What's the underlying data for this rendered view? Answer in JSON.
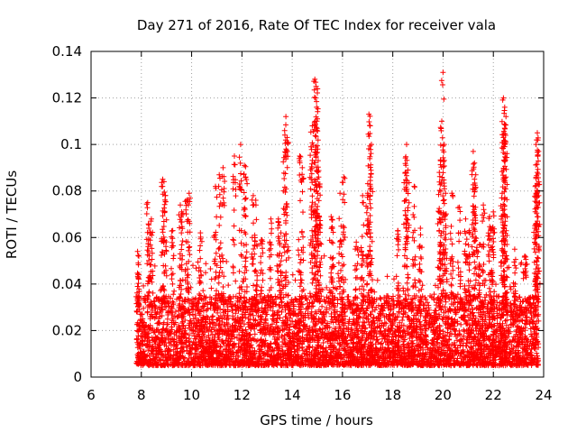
{
  "chart_data": {
    "type": "scatter",
    "title": "Day 271 of 2016, Rate Of TEC Index for receiver vala",
    "xlabel": "GPS time / hours",
    "ylabel": "ROTI / TECUs",
    "xlim": [
      6,
      24
    ],
    "ylim": [
      0,
      0.14
    ],
    "xticks": [
      6,
      8,
      10,
      12,
      14,
      16,
      18,
      20,
      22,
      24
    ],
    "yticks": [
      0,
      0.02,
      0.04,
      0.06,
      0.08,
      0.1,
      0.12,
      0.14
    ],
    "xtick_labels": [
      "6",
      "8",
      "10",
      "12",
      "14",
      "16",
      "18",
      "20",
      "22",
      "24"
    ],
    "ytick_labels": [
      "0",
      "0.02",
      "0.04",
      "0.06",
      "0.08",
      "0.1",
      "0.12",
      "0.14"
    ],
    "grid": true,
    "marker": "+",
    "color": "#ff0000",
    "data_range_hours": [
      7.8,
      23.8
    ],
    "series": [
      {
        "name": "ROTI",
        "points": [
          [
            7.85,
            0.054
          ],
          [
            7.9,
            0.052
          ],
          [
            8.25,
            0.075
          ],
          [
            8.3,
            0.064
          ],
          [
            8.4,
            0.068
          ],
          [
            8.85,
            0.085
          ],
          [
            8.9,
            0.084
          ],
          [
            8.95,
            0.078
          ],
          [
            9.55,
            0.074
          ],
          [
            9.6,
            0.071
          ],
          [
            9.8,
            0.076
          ],
          [
            9.9,
            0.079
          ],
          [
            10.95,
            0.082
          ],
          [
            11.1,
            0.087
          ],
          [
            11.25,
            0.09
          ],
          [
            11.7,
            0.095
          ],
          [
            11.95,
            0.1
          ],
          [
            12.1,
            0.091
          ],
          [
            12.15,
            0.086
          ],
          [
            12.45,
            0.078
          ],
          [
            12.55,
            0.076
          ],
          [
            13.15,
            0.068
          ],
          [
            13.45,
            0.068
          ],
          [
            13.75,
            0.112
          ],
          [
            13.7,
            0.106
          ],
          [
            13.8,
            0.103
          ],
          [
            14.3,
            0.095
          ],
          [
            14.4,
            0.09
          ],
          [
            14.75,
            0.099
          ],
          [
            14.8,
            0.108
          ],
          [
            14.9,
            0.128
          ],
          [
            14.95,
            0.125
          ],
          [
            14.92,
            0.12
          ],
          [
            14.97,
            0.116
          ],
          [
            15.0,
            0.111
          ],
          [
            15.05,
            0.086
          ],
          [
            15.1,
            0.083
          ],
          [
            15.55,
            0.069
          ],
          [
            15.6,
            0.064
          ],
          [
            15.9,
            0.079
          ],
          [
            16.05,
            0.086
          ],
          [
            16.8,
            0.078
          ],
          [
            17.05,
            0.113
          ],
          [
            17.1,
            0.108
          ],
          [
            17.15,
            0.1
          ],
          [
            17.0,
            0.079
          ],
          [
            18.55,
            0.1
          ],
          [
            18.6,
            0.089
          ],
          [
            18.5,
            0.088
          ],
          [
            18.85,
            0.082
          ],
          [
            19.85,
            0.088
          ],
          [
            20.0,
            0.131
          ],
          [
            19.95,
            0.11
          ],
          [
            20.05,
            0.1
          ],
          [
            19.9,
            0.093
          ],
          [
            20.1,
            0.079
          ],
          [
            20.35,
            0.079
          ],
          [
            20.65,
            0.073
          ],
          [
            20.9,
            0.068
          ],
          [
            21.2,
            0.097
          ],
          [
            21.25,
            0.092
          ],
          [
            21.3,
            0.087
          ],
          [
            21.05,
            0.063
          ],
          [
            21.6,
            0.074
          ],
          [
            21.85,
            0.069
          ],
          [
            21.9,
            0.064
          ],
          [
            22.0,
            0.071
          ],
          [
            22.4,
            0.12
          ],
          [
            22.45,
            0.116
          ],
          [
            22.5,
            0.112
          ],
          [
            22.45,
            0.107
          ],
          [
            22.4,
            0.103
          ],
          [
            22.5,
            0.086
          ],
          [
            22.35,
            0.079
          ],
          [
            23.75,
            0.105
          ],
          [
            23.7,
            0.1
          ],
          [
            23.8,
            0.097
          ],
          [
            23.75,
            0.088
          ],
          [
            23.7,
            0.079
          ],
          [
            23.65,
            0.064
          ],
          [
            23.25,
            0.052
          ],
          [
            22.85,
            0.055
          ],
          [
            21.45,
            0.057
          ],
          [
            19.1,
            0.064
          ],
          [
            18.2,
            0.063
          ],
          [
            16.55,
            0.058
          ],
          [
            13.55,
            0.062
          ],
          [
            12.8,
            0.059
          ],
          [
            10.35,
            0.062
          ],
          [
            9.25,
            0.063
          ]
        ]
      }
    ]
  }
}
